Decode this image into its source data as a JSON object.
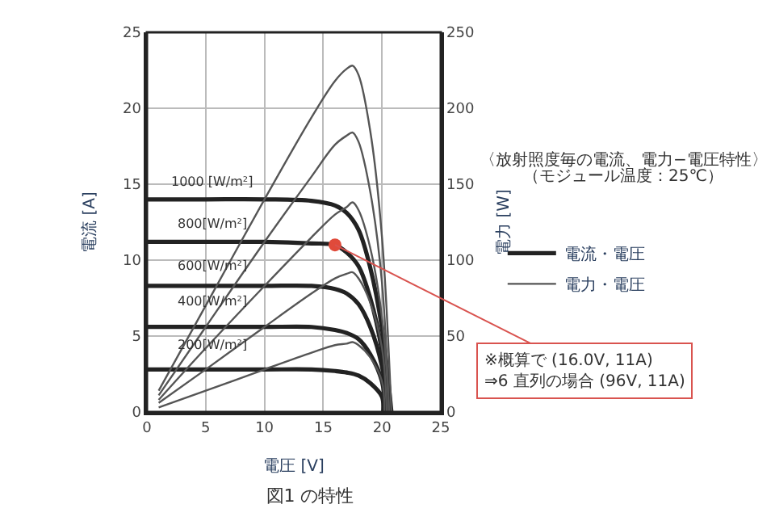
{
  "chart_data": {
    "type": "line",
    "title": "図1 の特性",
    "xlabel": "電圧 [V]",
    "ylabel": "電流 [A]",
    "y2label": "電力 [W]",
    "xlim": [
      0,
      25
    ],
    "xticks": [
      0,
      5,
      10,
      15,
      20,
      25
    ],
    "ylim": [
      0,
      25
    ],
    "yticks": [
      0,
      5,
      10,
      15,
      20,
      25
    ],
    "y2lim": [
      0,
      250
    ],
    "y2ticks": [
      0,
      50,
      100,
      150,
      200,
      250
    ],
    "grid": true,
    "legend": "right",
    "line_style": "solid",
    "series": [
      {
        "name": "電流・電圧",
        "color": "#222222",
        "x": [
          0,
          5,
          10,
          14,
          16,
          17,
          18,
          19,
          20,
          20.8
        ],
        "values": [
          14.0,
          14.0,
          14.0,
          13.9,
          13.6,
          13.1,
          12.0,
          9.5,
          5.5,
          0
        ]
      },
      {
        "color": "#222222",
        "x": [
          0,
          5,
          10,
          14,
          16,
          17,
          18,
          19,
          20,
          20.6
        ],
        "values": [
          11.2,
          11.2,
          11.2,
          11.1,
          11.0,
          10.5,
          9.6,
          7.5,
          4.0,
          0
        ]
      },
      {
        "color": "#222222",
        "x": [
          0,
          5,
          10,
          14,
          16,
          17,
          18,
          19,
          20,
          20.5
        ],
        "values": [
          8.3,
          8.3,
          8.3,
          8.3,
          8.1,
          7.8,
          7.1,
          5.6,
          3.0,
          0
        ]
      },
      {
        "color": "#222222",
        "x": [
          0,
          5,
          10,
          14,
          16,
          17,
          18,
          19,
          20,
          20.3
        ],
        "values": [
          5.6,
          5.6,
          5.6,
          5.6,
          5.4,
          5.2,
          4.8,
          3.8,
          2.0,
          0
        ]
      },
      {
        "color": "#222222",
        "x": [
          0,
          5,
          10,
          14,
          16,
          17,
          18,
          19,
          20,
          20.1
        ],
        "values": [
          2.8,
          2.8,
          2.8,
          2.8,
          2.7,
          2.6,
          2.4,
          1.9,
          1.0,
          0
        ]
      },
      {
        "name": "電力・電圧",
        "color": "#555555",
        "axis": "y2",
        "x": [
          1,
          5,
          10,
          14,
          16,
          17,
          17.5,
          18,
          19,
          20,
          20.8
        ],
        "values": [
          14,
          70,
          140,
          194,
          218,
          226,
          228,
          222,
          185,
          115,
          0.0
        ]
      },
      {
        "color": "#555555",
        "axis": "y2",
        "x": [
          1,
          5,
          10,
          14,
          16,
          17,
          17.5,
          18,
          19,
          20,
          20.6
        ],
        "values": [
          11,
          56,
          112,
          155,
          176,
          182,
          184,
          178,
          145,
          85,
          0
        ]
      },
      {
        "color": "#555555",
        "axis": "y2",
        "x": [
          1,
          5,
          10,
          14,
          16,
          17,
          17.5,
          18,
          19,
          20,
          20.6
        ],
        "values": [
          8,
          42,
          83,
          115,
          130,
          135,
          138,
          133,
          108,
          62,
          0
        ]
      },
      {
        "color": "#555555",
        "axis": "y2",
        "x": [
          1,
          5,
          10,
          14,
          16,
          17,
          17.5,
          18,
          19,
          20,
          20.4
        ],
        "values": [
          6,
          28,
          56,
          78,
          88,
          91,
          92,
          88,
          72,
          42,
          0
        ]
      },
      {
        "color": "#555555",
        "axis": "y2",
        "x": [
          1,
          5,
          10,
          14,
          16,
          17,
          17.5,
          18,
          19,
          20,
          20.2
        ],
        "values": [
          3,
          14,
          28,
          39,
          44,
          45,
          46,
          44,
          36,
          20,
          0
        ]
      },
      {
        "type": "scatter",
        "color": "#e04a3a",
        "x": [
          16
        ],
        "values": [
          11
        ]
      }
    ],
    "annotations": [
      "1000 [W/m²]",
      "800[W/m²]",
      "600[W/m²]",
      "400[W/m²]",
      "200[W/m²]",
      {
        "text": "※概算で (16.0V, 11A)\n⇒6 直列の場合 (96V, 11A)",
        "x": 16,
        "y": 11
      },
      "〈放射照度毎の電流、電力−電圧特性〉",
      "（モジュール温度：25℃）"
    ]
  }
}
